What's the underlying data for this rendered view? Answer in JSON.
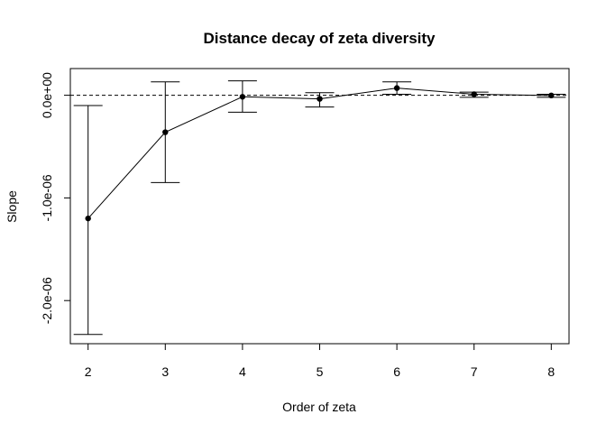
{
  "chart_data": {
    "type": "line",
    "title": "Distance decay of zeta diversity",
    "xlabel": "Order of zeta",
    "ylabel": "Slope",
    "x": [
      2,
      3,
      4,
      5,
      6,
      7,
      8
    ],
    "xtick_labels": [
      "2",
      "3",
      "4",
      "5",
      "6",
      "7",
      "8"
    ],
    "series": [
      {
        "values": [
          -1.2e-06,
          -3.6e-07,
          -1.5e-08,
          -3.5e-08,
          7e-08,
          1e-08,
          -2e-09
        ],
        "err_low": [
          -2.33e-06,
          -8.5e-07,
          -1.65e-07,
          -1.15e-07,
          1e-08,
          -2e-08,
          -2e-08
        ],
        "err_high": [
          -1e-07,
          1.3e-07,
          1.4e-07,
          2.5e-08,
          1.3e-07,
          3e-08,
          1e-08
        ]
      }
    ],
    "ytick_values": [
      0,
      -1e-06,
      -2e-06
    ],
    "ytick_labels": [
      "0.0e+00",
      "-1.0e-06",
      "-2.0e-06"
    ],
    "xlim": [
      1.77,
      8.23
    ],
    "ylim": [
      -2.42e-06,
      2.6e-07
    ],
    "reference_line": 0,
    "grid": false,
    "legend": "none",
    "colors": {
      "line": "#000000",
      "background": "#ffffff"
    }
  }
}
